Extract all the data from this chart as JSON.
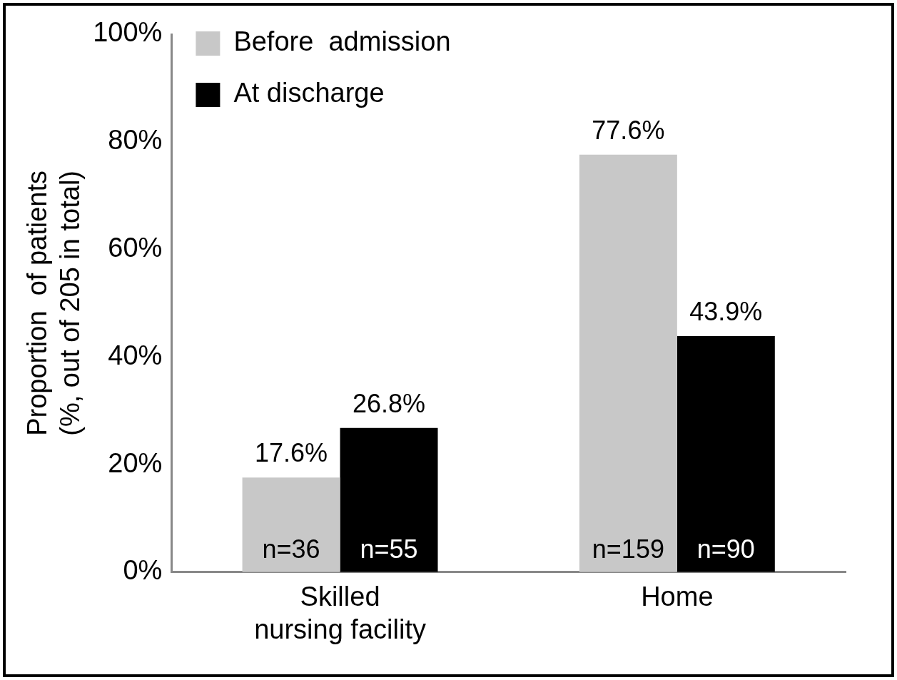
{
  "chart_data": {
    "type": "bar",
    "ylabel": "Proportion  of patients\n(%, out of 205 in total)",
    "categories": [
      "Skilled\nnursing facility",
      "Home"
    ],
    "series": [
      {
        "name": "Before  admission",
        "color": "#c8c8c8",
        "values": [
          17.6,
          77.6
        ],
        "value_labels": [
          "17.6%",
          "77.6%"
        ]
      },
      {
        "name": "At discharge",
        "color": "#000000",
        "values": [
          26.8,
          43.9
        ],
        "value_labels": [
          "26.8%",
          "43.9%"
        ]
      }
    ],
    "ylim": [
      0,
      100
    ],
    "yticks": [
      {
        "value": 0,
        "label": "0%"
      },
      {
        "value": 20,
        "label": "20%"
      },
      {
        "value": 40,
        "label": "40%"
      },
      {
        "value": 60,
        "label": "60%"
      },
      {
        "value": 80,
        "label": "80%"
      },
      {
        "value": 100,
        "label": "100%"
      }
    ],
    "grid": false,
    "legend": "top left",
    "annotations": [
      {
        "text": "n=36",
        "x": "Skilled\nnursing facility",
        "y": 0
      },
      {
        "text": "n=55",
        "x": "Skilled\nnursing facility",
        "y": 0
      },
      {
        "text": "n=159",
        "x": "Home",
        "y": 0
      },
      {
        "text": "n=90",
        "x": "Home",
        "y": 0
      }
    ]
  }
}
